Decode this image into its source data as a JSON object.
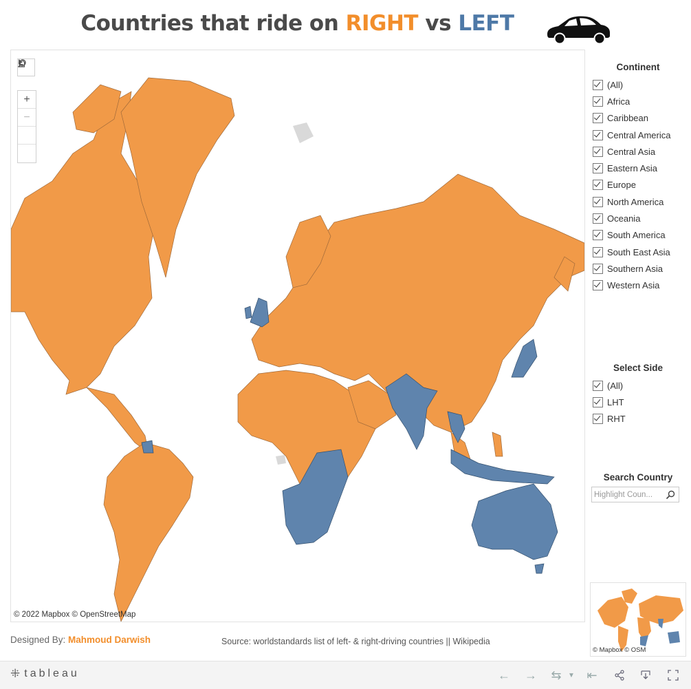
{
  "header": {
    "title_prefix": "Countries that ride on ",
    "title_right": "RIGHT",
    "title_mid": " vs ",
    "title_left": "LEFT"
  },
  "colors": {
    "right": "#f28e2b",
    "left": "#4e79a7",
    "none": "#d9d9d9"
  },
  "map": {
    "attribution": "© 2022 Mapbox  © OpenStreetMap",
    "tools": [
      "search-icon",
      "zoom-in-icon",
      "zoom-out-icon",
      "home-icon",
      "play-icon"
    ]
  },
  "continent_filter": {
    "title": "Continent",
    "options": [
      "(All)",
      "Africa",
      "Caribbean",
      "Central America",
      "Central Asia",
      "Eastern Asia",
      "Europe",
      "North America",
      "Oceania",
      "South America",
      "South East Asia",
      "Southern Asia",
      "Western Asia"
    ]
  },
  "side_filter": {
    "title": "Select Side",
    "options": [
      "(All)",
      "LHT",
      "RHT"
    ]
  },
  "search": {
    "title": "Search Country",
    "placeholder": "Highlight Coun..."
  },
  "minimap": {
    "attribution": "© Mapbox  © OSM"
  },
  "footer": {
    "designed_by_label": "Designed By: ",
    "designer": "Mahmoud Darwish",
    "source": "Source: worldstandards list of left- & right-driving countries || Wikipedia",
    "brand": "tableau"
  }
}
